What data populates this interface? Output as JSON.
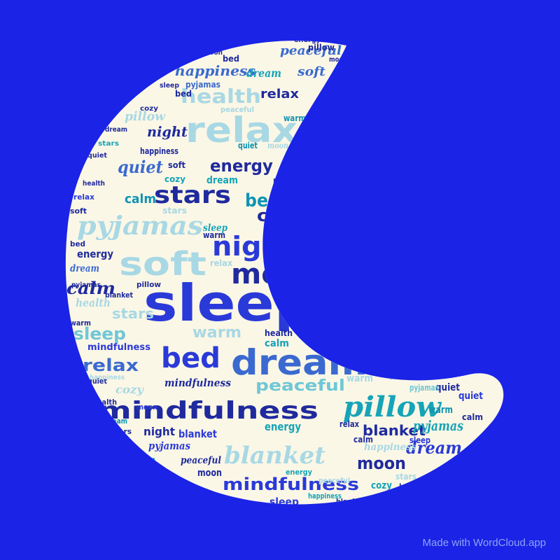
{
  "colors": {
    "background": "#1a23e6",
    "moon": "#fbf7e6",
    "palette": [
      "#1f2a9e",
      "#2a3ad8",
      "#3a6ad0",
      "#0f94b3",
      "#16a4b8",
      "#6fc7d6",
      "#a8d8e4"
    ]
  },
  "credit": "Made with WordCloud.app",
  "words": {
    "sleep": "sleep",
    "dream": "dream",
    "moon": "moon",
    "night": "night",
    "relax": "relax",
    "soft": "soft",
    "pyjamas": "pyjamas",
    "pillow": "pillow",
    "mindfulness": "mindfulness",
    "bed": "bed",
    "blanket": "blanket",
    "stars": "stars",
    "calm": "calm",
    "peaceful": "peaceful",
    "cozy": "cozy",
    "quiet": "quiet",
    "energy": "energy",
    "health": "health",
    "happiness": "happiness",
    "warm": "warm"
  }
}
